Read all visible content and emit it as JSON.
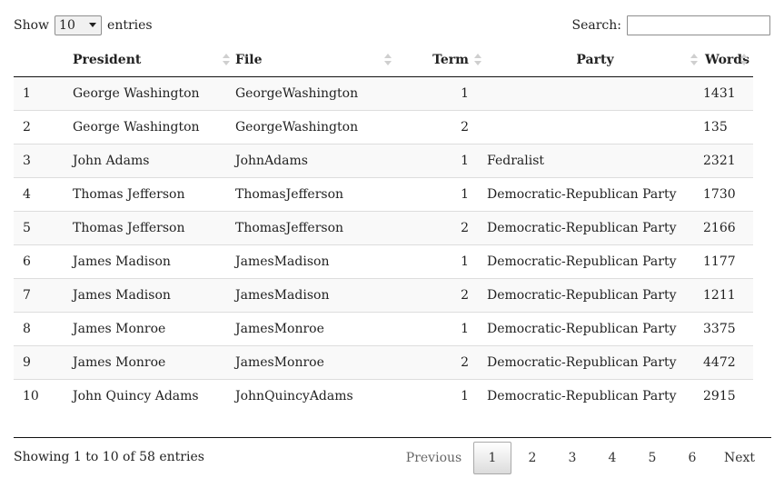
{
  "length": {
    "show_label": "Show",
    "selected": "10",
    "entries_label": "entries"
  },
  "search": {
    "label": "Search:",
    "value": ""
  },
  "columns": [
    "",
    "President",
    "File",
    "Term",
    "Party",
    "Words"
  ],
  "rows": [
    [
      "1",
      "George Washington",
      "GeorgeWashington",
      "1",
      "",
      "1431"
    ],
    [
      "2",
      "George Washington",
      "GeorgeWashington",
      "2",
      "",
      "135"
    ],
    [
      "3",
      "John Adams",
      "JohnAdams",
      "1",
      "Fedralist",
      "2321"
    ],
    [
      "4",
      "Thomas Jefferson",
      "ThomasJefferson",
      "1",
      "Democratic-Republican Party",
      "1730"
    ],
    [
      "5",
      "Thomas Jefferson",
      "ThomasJefferson",
      "2",
      "Democratic-Republican Party",
      "2166"
    ],
    [
      "6",
      "James Madison",
      "JamesMadison",
      "1",
      "Democratic-Republican Party",
      "1177"
    ],
    [
      "7",
      "James Madison",
      "JamesMadison",
      "2",
      "Democratic-Republican Party",
      "1211"
    ],
    [
      "8",
      "James Monroe",
      "JamesMonroe",
      "1",
      "Democratic-Republican Party",
      "3375"
    ],
    [
      "9",
      "James Monroe",
      "JamesMonroe",
      "2",
      "Democratic-Republican Party",
      "4472"
    ],
    [
      "10",
      "John Quincy Adams",
      "JohnQuincyAdams",
      "1",
      "Democratic-Republican Party",
      "2915"
    ]
  ],
  "info": "Showing 1 to 10 of 58 entries",
  "pagination": {
    "previous": "Previous",
    "pages": [
      "1",
      "2",
      "3",
      "4",
      "5",
      "6"
    ],
    "current": "1",
    "next": "Next"
  },
  "icons": {
    "sort": "sort-both-icon",
    "dropdown": "chevron-down-icon"
  }
}
